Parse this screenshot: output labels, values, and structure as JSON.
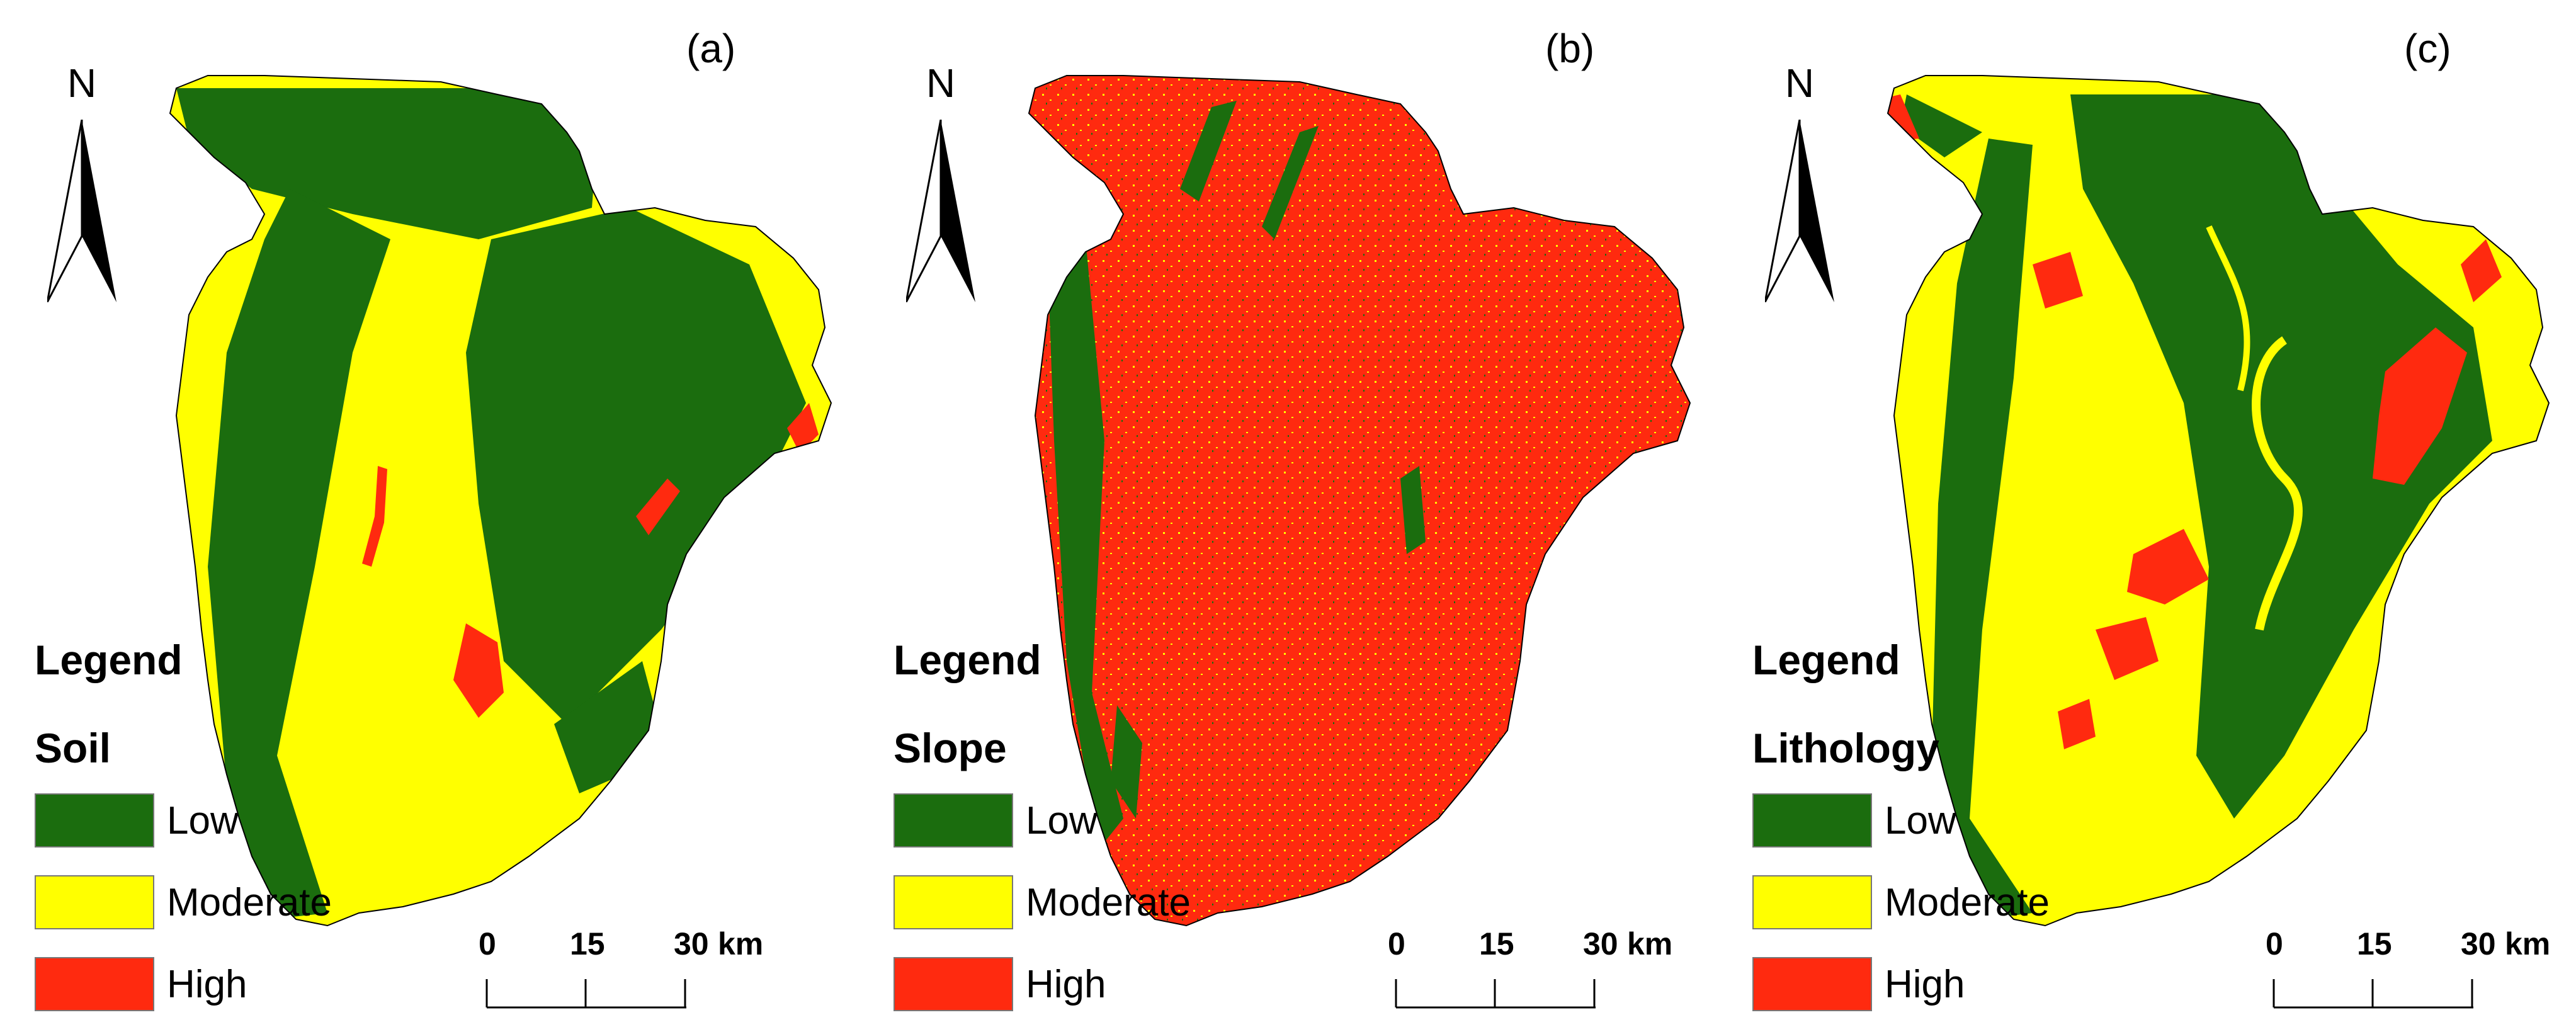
{
  "colors": {
    "low": "#1b6d0e",
    "moderate": "#ffff00",
    "high": "#ff2a0f"
  },
  "legend": {
    "title": "Legend",
    "classes": [
      {
        "label": "Low",
        "color": "#1b6d0e"
      },
      {
        "label": "Moderate",
        "color": "#ffff00"
      },
      {
        "label": "High",
        "color": "#ff2a0f"
      }
    ]
  },
  "north_arrow": {
    "letter": "N",
    "icon": "north-arrow-icon"
  },
  "scale_bar": {
    "ticks": [
      "0",
      "15",
      "30"
    ],
    "unit": "km"
  },
  "panels": [
    {
      "label": "(a)",
      "factor": "Soil",
      "dominant": "moderate"
    },
    {
      "label": "(b)",
      "factor": "Slope",
      "dominant": "high"
    },
    {
      "label": "(c)",
      "factor": "Lithology",
      "dominant": "moderate"
    }
  ]
}
